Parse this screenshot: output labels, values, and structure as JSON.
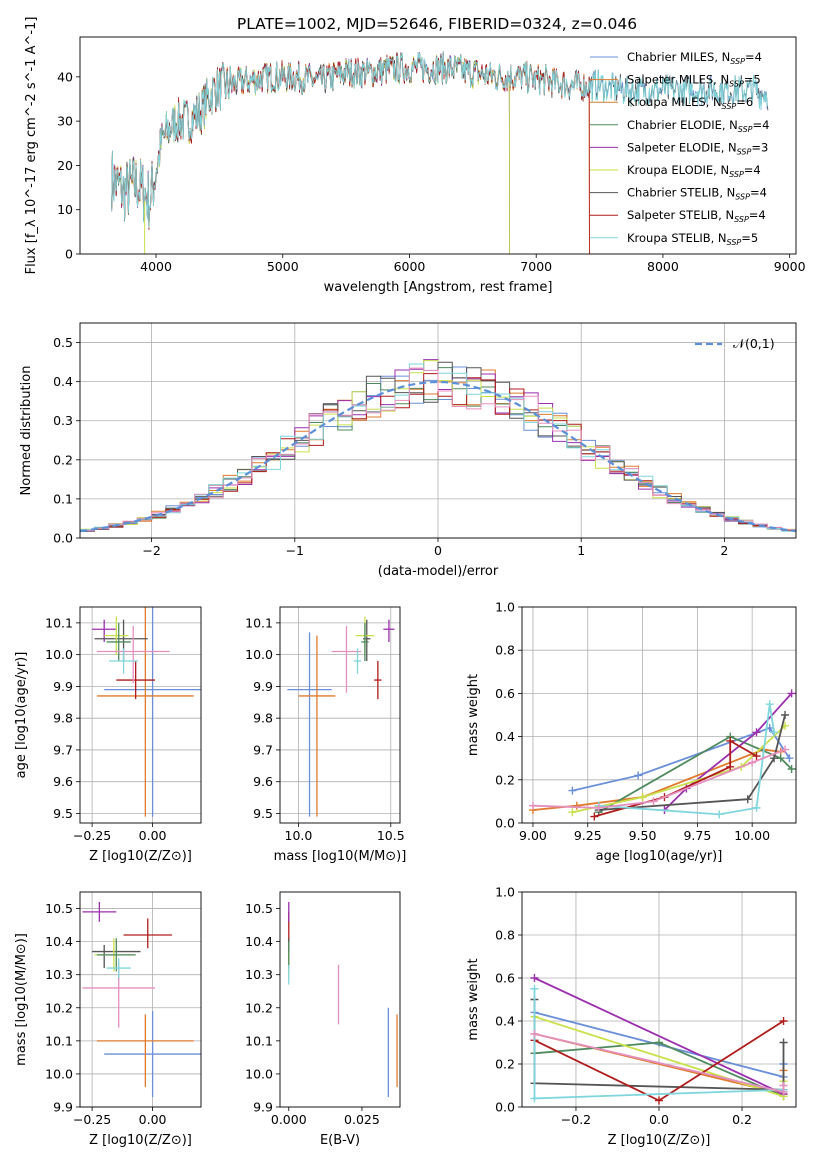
{
  "figure_title": "PLATE=1002, MJD=52646, FIBERID=0324, z=0.046",
  "chart_data": [
    {
      "id": "spectrum",
      "type": "line",
      "title": "PLATE=1002, MJD=52646, FIBERID=0324, z=0.046",
      "xlabel": "wavelength [Angstrom, rest frame]",
      "ylabel": "Flux [f_λ 10^-17 erg cm^-2 s^-1 A^-1]",
      "xlim": [
        3400,
        9050
      ],
      "ylim": [
        0,
        49
      ],
      "xticks": [
        4000,
        5000,
        6000,
        7000,
        8000,
        9000
      ],
      "yticks": [
        0,
        10,
        20,
        30,
        40
      ],
      "grid": false,
      "legend_position": "top-right",
      "continuum": {
        "x": [
          3650,
          3750,
          3850,
          3950,
          4050,
          4150,
          4250,
          4350,
          4450,
          4550,
          4700,
          4900,
          5100,
          5300,
          5500,
          5700,
          5900,
          6100,
          6300,
          6500,
          6700,
          6900,
          7100,
          7300,
          7500,
          7700,
          7900,
          8100,
          8300,
          8500,
          8700,
          8830
        ],
        "y": [
          17,
          14,
          16,
          12,
          26,
          30,
          30,
          32,
          37,
          38,
          39,
          40,
          40,
          39,
          41,
          41,
          42,
          42,
          42,
          41,
          40,
          40,
          39,
          38,
          38,
          37,
          37,
          37,
          37,
          37,
          37,
          36
        ]
      },
      "series": [
        {
          "name": "Chabrier MILES, N_SSP=4",
          "color": "#6a8fd8",
          "xmax": 8830
        },
        {
          "name": "Salpeter MILES, N_SSP=5",
          "color": "#e07b2d",
          "xmax": 7420
        },
        {
          "name": "Kroupa MILES, N_SSP=6",
          "color": "#d4802a",
          "xmax": 7420
        },
        {
          "name": "Chabrier ELODIE, N_SSP=4",
          "color": "#4f8a5e",
          "xmax": 6790
        },
        {
          "name": "Salpeter ELODIE, N_SSP=3",
          "color": "#9b2fae",
          "xmax": 6790
        },
        {
          "name": "Kroupa ELODIE, N_SSP=4",
          "color": "#c9e04a",
          "xmax": 6790
        },
        {
          "name": "Chabrier STELIB, N_SSP=4",
          "color": "#555555",
          "xmax": 8830
        },
        {
          "name": "Salpeter STELIB, N_SSP=4",
          "color": "#b01c1c",
          "xmax": 7420
        },
        {
          "name": "Kroupa STELIB, N_SSP=5",
          "color": "#7fd6dc",
          "xmax": 8830
        }
      ]
    },
    {
      "id": "residuals",
      "type": "area",
      "xlabel": "(data-model)/error",
      "ylabel": "Normed distribution",
      "xlim": [
        -2.5,
        2.5
      ],
      "ylim": [
        0,
        0.55
      ],
      "xticks": [
        -2,
        -1,
        0,
        1,
        2
      ],
      "yticks": [
        0.0,
        0.1,
        0.2,
        0.3,
        0.4,
        0.5
      ],
      "grid": true,
      "legend_position": "top-right",
      "legend": [
        "𝒩(0,1)"
      ],
      "histogram_colors": [
        "#6a8fd8",
        "#e07b2d",
        "#4f8a5e",
        "#9b2fae",
        "#c9e04a",
        "#555555",
        "#b01c1c",
        "#7fd6dc",
        "#e58fbf"
      ],
      "bin_width": 0.1
    },
    {
      "id": "z-age",
      "type": "scatter",
      "xlabel": "Z [log10(Z/Z⊙)]",
      "ylabel": "age [log10(age/yr)]",
      "xlim": [
        -0.3,
        0.2
      ],
      "ylim": [
        9.47,
        10.15
      ],
      "xticks": [
        -0.25,
        0.0
      ],
      "yticks": [
        9.5,
        9.6,
        9.7,
        9.8,
        9.9,
        10.0,
        10.1
      ],
      "grid": true,
      "points": [
        {
          "x": 0.0,
          "y": 9.89,
          "xerr": [
            0.2,
            0.2
          ],
          "yerr": [
            0.4,
            0.3
          ],
          "color": "#6a8fd8"
        },
        {
          "x": -0.03,
          "y": 9.87,
          "xerr": [
            0.2,
            0.2
          ],
          "yerr": [
            0.38,
            0.32
          ],
          "color": "#e07b2d"
        },
        {
          "x": -0.07,
          "y": 9.92,
          "xerr": [
            0.08,
            0.08
          ],
          "yerr": [
            0.06,
            0.06
          ],
          "color": "#b01c1c"
        },
        {
          "x": -0.2,
          "y": 10.08,
          "xerr": [
            0.05,
            0.05
          ],
          "yerr": [
            0.04,
            0.03
          ],
          "color": "#9b2fae"
        },
        {
          "x": -0.12,
          "y": 10.05,
          "xerr": [
            0.12,
            0.1
          ],
          "yerr": [
            0.07,
            0.06
          ],
          "color": "#555555"
        },
        {
          "x": -0.15,
          "y": 10.06,
          "xerr": [
            0.05,
            0.05
          ],
          "yerr": [
            0.06,
            0.06
          ],
          "color": "#c9e04a"
        },
        {
          "x": -0.14,
          "y": 10.04,
          "xerr": [
            0.05,
            0.05
          ],
          "yerr": [
            0.06,
            0.06
          ],
          "color": "#4f8a5e"
        },
        {
          "x": -0.08,
          "y": 10.01,
          "xerr": [
            0.15,
            0.15
          ],
          "yerr": [
            0.1,
            0.08
          ],
          "color": "#e58fbf"
        },
        {
          "x": -0.12,
          "y": 9.98,
          "xerr": [
            0.06,
            0.06
          ],
          "yerr": [
            0.04,
            0.04
          ],
          "color": "#7fd6dc"
        }
      ]
    },
    {
      "id": "mass-age",
      "type": "scatter",
      "xlabel": "mass [log10(M/M⊙)]",
      "ylabel": "",
      "xlim": [
        9.9,
        10.55
      ],
      "ylim": [
        9.47,
        10.15
      ],
      "xticks": [
        10.0,
        10.5
      ],
      "yticks": [
        9.5,
        9.6,
        9.7,
        9.8,
        9.9,
        10.0,
        10.1
      ],
      "grid": true,
      "points": [
        {
          "x": 10.06,
          "y": 9.89,
          "xerr": [
            0.12,
            0.12
          ],
          "yerr": [
            0.4,
            0.18
          ],
          "color": "#6a8fd8"
        },
        {
          "x": 10.1,
          "y": 9.87,
          "xerr": [
            0.1,
            0.1
          ],
          "yerr": [
            0.38,
            0.19
          ],
          "color": "#e07b2d"
        },
        {
          "x": 10.43,
          "y": 9.92,
          "xerr": [
            0.02,
            0.02
          ],
          "yerr": [
            0.06,
            0.06
          ],
          "color": "#b01c1c"
        },
        {
          "x": 10.49,
          "y": 10.08,
          "xerr": [
            0.03,
            0.03
          ],
          "yerr": [
            0.04,
            0.03
          ],
          "color": "#9b2fae"
        },
        {
          "x": 10.37,
          "y": 10.05,
          "xerr": [
            0.02,
            0.02
          ],
          "yerr": [
            0.07,
            0.06
          ],
          "color": "#555555"
        },
        {
          "x": 10.36,
          "y": 10.06,
          "xerr": [
            0.05,
            0.05
          ],
          "yerr": [
            0.06,
            0.06
          ],
          "color": "#c9e04a"
        },
        {
          "x": 10.36,
          "y": 10.04,
          "xerr": [
            0.02,
            0.02
          ],
          "yerr": [
            0.06,
            0.06
          ],
          "color": "#4f8a5e"
        },
        {
          "x": 10.26,
          "y": 10.01,
          "xerr": [
            0.08,
            0.08
          ],
          "yerr": [
            0.13,
            0.08
          ],
          "color": "#e58fbf"
        },
        {
          "x": 10.32,
          "y": 9.98,
          "xerr": [
            0.02,
            0.02
          ],
          "yerr": [
            0.04,
            0.04
          ],
          "color": "#7fd6dc"
        }
      ]
    },
    {
      "id": "age-weight",
      "type": "line",
      "xlabel": "age [log10(age/yr)]",
      "ylabel": "mass weight",
      "xlim": [
        8.95,
        10.2
      ],
      "ylim": [
        0,
        1
      ],
      "xticks": [
        9.0,
        9.25,
        9.5,
        9.75,
        10.0
      ],
      "yticks": [
        0.0,
        0.2,
        0.4,
        0.6,
        0.8,
        1.0
      ],
      "grid": true,
      "series": [
        {
          "color": "#6a8fd8",
          "x": [
            9.18,
            9.48,
            10.08,
            10.17
          ],
          "y": [
            0.15,
            0.22,
            0.44,
            0.3
          ]
        },
        {
          "color": "#e07b2d",
          "x": [
            9.0,
            9.2,
            9.5,
            10.05,
            10.13
          ],
          "y": [
            0.06,
            0.08,
            0.12,
            0.34,
            0.33
          ]
        },
        {
          "color": "#4f8a5e",
          "x": [
            9.3,
            9.9,
            10.13,
            10.18
          ],
          "y": [
            0.05,
            0.4,
            0.3,
            0.25
          ]
        },
        {
          "color": "#9b2fae",
          "x": [
            9.6,
            9.7,
            10.02,
            10.18
          ],
          "y": [
            0.06,
            0.16,
            0.42,
            0.6
          ]
        },
        {
          "color": "#c9e04a",
          "x": [
            9.18,
            9.5,
            9.95,
            10.15
          ],
          "y": [
            0.05,
            0.12,
            0.26,
            0.45
          ]
        },
        {
          "color": "#555555",
          "x": [
            9.3,
            9.98,
            10.1,
            10.15
          ],
          "y": [
            0.06,
            0.11,
            0.3,
            0.5
          ]
        },
        {
          "color": "#b01c1c",
          "x": [
            9.28,
            9.6,
            9.9,
            9.9,
            10.02
          ],
          "y": [
            0.03,
            0.12,
            0.26,
            0.38,
            0.31
          ]
        },
        {
          "color": "#7fd6dc",
          "x": [
            9.3,
            9.85,
            10.02,
            10.08,
            10.1
          ],
          "y": [
            0.08,
            0.04,
            0.07,
            0.55,
            0.42
          ]
        },
        {
          "color": "#e58fbf",
          "x": [
            9.0,
            9.3,
            9.55,
            10.0,
            10.15
          ],
          "y": [
            0.08,
            0.07,
            0.1,
            0.28,
            0.34
          ]
        }
      ]
    },
    {
      "id": "z-mass",
      "type": "scatter",
      "xlabel": "Z [log10(Z/Z⊙)]",
      "ylabel": "mass [log10(M/M⊙)]",
      "xlim": [
        -0.3,
        0.2
      ],
      "ylim": [
        9.9,
        10.55
      ],
      "xticks": [
        -0.25,
        0.0
      ],
      "yticks": [
        9.9,
        10.0,
        10.1,
        10.2,
        10.3,
        10.4,
        10.5
      ],
      "grid": true,
      "points": [
        {
          "x": 0.0,
          "y": 10.06,
          "xerr": [
            0.2,
            0.2
          ],
          "yerr": [
            0.13,
            0.13
          ],
          "color": "#6a8fd8"
        },
        {
          "x": -0.03,
          "y": 10.1,
          "xerr": [
            0.2,
            0.2
          ],
          "yerr": [
            0.14,
            0.08
          ],
          "color": "#e07b2d"
        },
        {
          "x": -0.02,
          "y": 10.42,
          "xerr": [
            0.1,
            0.1
          ],
          "yerr": [
            0.04,
            0.05
          ],
          "color": "#b01c1c"
        },
        {
          "x": -0.22,
          "y": 10.49,
          "xerr": [
            0.07,
            0.07
          ],
          "yerr": [
            0.03,
            0.03
          ],
          "color": "#9b2fae"
        },
        {
          "x": -0.2,
          "y": 10.37,
          "xerr": [
            0.05,
            0.15
          ],
          "yerr": [
            0.05,
            0.02
          ],
          "color": "#555555"
        },
        {
          "x": -0.16,
          "y": 10.36,
          "xerr": [
            0.08,
            0.08
          ],
          "yerr": [
            0.05,
            0.05
          ],
          "color": "#c9e04a"
        },
        {
          "x": -0.15,
          "y": 10.36,
          "xerr": [
            0.08,
            0.08
          ],
          "yerr": [
            0.05,
            0.05
          ],
          "color": "#4f8a5e"
        },
        {
          "x": -0.14,
          "y": 10.26,
          "xerr": [
            0.15,
            0.15
          ],
          "yerr": [
            0.12,
            0.08
          ],
          "color": "#e58fbf"
        },
        {
          "x": -0.14,
          "y": 10.32,
          "xerr": [
            0.05,
            0.05
          ],
          "yerr": [
            0.03,
            0.03
          ],
          "color": "#7fd6dc"
        }
      ]
    },
    {
      "id": "ebv-mass",
      "type": "scatter",
      "xlabel": "E(B-V)",
      "ylabel": "",
      "xlim": [
        -0.003,
        0.038
      ],
      "ylim": [
        9.9,
        10.55
      ],
      "xticks": [
        0.0,
        0.025
      ],
      "yticks": [
        9.9,
        10.0,
        10.1,
        10.2,
        10.3,
        10.4,
        10.5
      ],
      "grid": false,
      "points": [
        {
          "x": 0.034,
          "y": 10.06,
          "xerr": [
            0,
            0
          ],
          "yerr": [
            0.13,
            0.14
          ],
          "color": "#6a8fd8"
        },
        {
          "x": 0.037,
          "y": 10.1,
          "xerr": [
            0,
            0
          ],
          "yerr": [
            0.14,
            0.08
          ],
          "color": "#e07b2d"
        },
        {
          "x": 0.017,
          "y": 10.25,
          "xerr": [
            0,
            0
          ],
          "yerr": [
            0.1,
            0.08
          ],
          "color": "#e58fbf"
        },
        {
          "x": 0.0,
          "y": 10.44,
          "xerr": [
            0,
            0
          ],
          "yerr": [
            0.04,
            0.05
          ],
          "color": "#b01c1c"
        },
        {
          "x": 0.0,
          "y": 10.49,
          "xerr": [
            0,
            0
          ],
          "yerr": [
            0.03,
            0.03
          ],
          "color": "#9b2fae"
        },
        {
          "x": 0.0,
          "y": 10.36,
          "xerr": [
            0,
            0
          ],
          "yerr": [
            0.05,
            0.05
          ],
          "color": "#555555"
        },
        {
          "x": 0.0,
          "y": 10.33,
          "xerr": [
            0,
            0
          ],
          "yerr": [
            0.04,
            0.04
          ],
          "color": "#c9e04a"
        },
        {
          "x": 0.0,
          "y": 10.36,
          "xerr": [
            0,
            0
          ],
          "yerr": [
            0.04,
            0.04
          ],
          "color": "#4f8a5e"
        },
        {
          "x": 0.0,
          "y": 10.3,
          "xerr": [
            0,
            0
          ],
          "yerr": [
            0.03,
            0.03
          ],
          "color": "#7fd6dc"
        }
      ]
    },
    {
      "id": "z-weight",
      "type": "line",
      "xlabel": "Z [log10(Z/Z⊙)]",
      "ylabel": "mass weight",
      "xlim": [
        -0.33,
        0.33
      ],
      "ylim": [
        0,
        1
      ],
      "xticks": [
        -0.2,
        0.0,
        0.2
      ],
      "yticks": [
        0.0,
        0.2,
        0.4,
        0.6,
        0.8,
        1.0
      ],
      "grid": true,
      "series": [
        {
          "color": "#6a8fd8",
          "x": [
            -0.3,
            0.3,
            0.3
          ],
          "y": [
            0.44,
            0.14,
            0.2
          ]
        },
        {
          "color": "#e07b2d",
          "x": [
            -0.3,
            0.3,
            0.3
          ],
          "y": [
            0.34,
            0.06,
            0.17
          ]
        },
        {
          "color": "#4f8a5e",
          "x": [
            -0.3,
            0.0,
            0.3,
            0.3
          ],
          "y": [
            0.25,
            0.3,
            0.05,
            0.08
          ]
        },
        {
          "color": "#9b2fae",
          "x": [
            -0.3,
            0.3
          ],
          "y": [
            0.6,
            0.06
          ]
        },
        {
          "color": "#c9e04a",
          "x": [
            -0.3,
            0.3,
            0.3
          ],
          "y": [
            0.42,
            0.05,
            0.12
          ]
        },
        {
          "color": "#555555",
          "x": [
            -0.3,
            -0.3,
            0.3,
            0.3
          ],
          "y": [
            0.5,
            0.11,
            0.08,
            0.3
          ]
        },
        {
          "color": "#b01c1c",
          "x": [
            -0.3,
            0.0,
            0.3
          ],
          "y": [
            0.31,
            0.03,
            0.4
          ]
        },
        {
          "color": "#7fd6dc",
          "x": [
            -0.3,
            -0.3,
            0.3,
            0.3
          ],
          "y": [
            0.55,
            0.04,
            0.08,
            0.07
          ]
        },
        {
          "color": "#e58fbf",
          "x": [
            -0.3,
            0.3,
            0.3
          ],
          "y": [
            0.34,
            0.07,
            0.1
          ]
        }
      ]
    }
  ]
}
